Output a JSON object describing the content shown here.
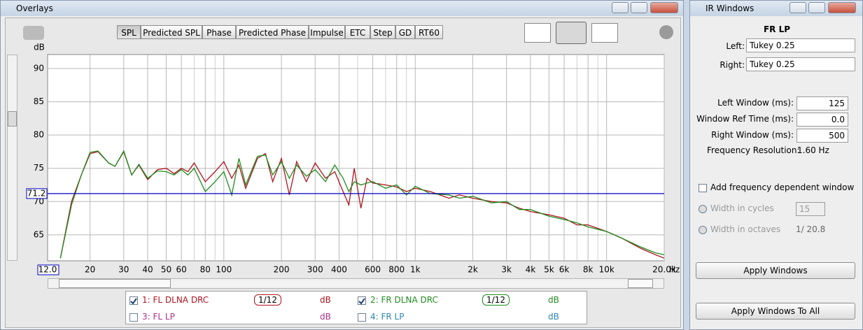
{
  "overlays": {
    "title": "Overlays",
    "tabs": [
      "SPL",
      "Predicted SPL",
      "Phase",
      "Predicted Phase",
      "Impulse",
      "ETC",
      "Step",
      "GD",
      "RT60"
    ],
    "active_tab": 0,
    "extra_traces": [
      {
        "name": "3: FL LP",
        "color": "#b0308a",
        "unit": "dB",
        "checked": false
      },
      {
        "name": "4: FR LP",
        "color": "#2a86b0",
        "unit": "dB",
        "checked": false
      }
    ]
  },
  "chart_data": {
    "type": "line",
    "y_unit": "dB",
    "x_unit": "Hz",
    "log_x": true,
    "grid": true,
    "xlim": [
      12,
      20000
    ],
    "ylim": [
      61.1,
      92.1
    ],
    "yticks": [
      65,
      70,
      75,
      80,
      85,
      90
    ],
    "xticks": [
      20,
      30,
      40,
      50,
      60,
      80,
      100,
      200,
      300,
      400,
      600,
      800,
      {
        "value": 1000,
        "label": "1k"
      },
      {
        "value": 2000,
        "label": "2k"
      },
      {
        "value": 3000,
        "label": "3k"
      },
      {
        "value": 4000,
        "label": "4k"
      },
      {
        "value": 5000,
        "label": "5k"
      },
      {
        "value": 6000,
        "label": "6k"
      },
      {
        "value": 8000,
        "label": "8k"
      },
      {
        "value": 10000,
        "label": "10k"
      },
      {
        "value": 20000,
        "label": "20.0k"
      }
    ],
    "xminor": [
      70,
      90,
      500,
      700,
      900,
      7000,
      9000
    ],
    "x_start_label": {
      "value": 12,
      "label": "12.0"
    },
    "cursor_y": 71.2,
    "cursor_color": "#0000c0",
    "x": [
      14,
      16,
      18,
      20,
      22,
      25,
      27,
      30,
      33,
      36,
      40,
      45,
      50,
      55,
      60,
      65,
      70,
      80,
      90,
      100,
      110,
      120,
      130,
      150,
      165,
      180,
      200,
      220,
      240,
      270,
      300,
      340,
      380,
      420,
      450,
      480,
      520,
      560,
      600,
      700,
      800,
      900,
      1000,
      1200,
      1500,
      1700,
      2000,
      2500,
      3000,
      3500,
      4000,
      5000,
      6000,
      7000,
      8000,
      10000,
      12000,
      15000,
      18000,
      20000
    ],
    "series": [
      {
        "name": "1: FL DLNA DRC",
        "color": "#b0141e",
        "checked": true,
        "smoothing": "1/12",
        "unit": "dB",
        "values": [
          61.5,
          70,
          74,
          77.2,
          77.5,
          75.8,
          75.3,
          77.5,
          74,
          75.5,
          73.3,
          74.8,
          75,
          74.2,
          75,
          74.5,
          75.8,
          73,
          74.5,
          76,
          73.5,
          75.5,
          72,
          76.5,
          77.2,
          73,
          76.5,
          71,
          76,
          73,
          75.8,
          73.5,
          74.5,
          71.5,
          69.5,
          75,
          69,
          73.5,
          72.8,
          72.5,
          72.2,
          71.5,
          72,
          71.5,
          70.5,
          71,
          70.5,
          70,
          69.8,
          69,
          68.5,
          68,
          67.5,
          66.5,
          66.5,
          65.5,
          64.5,
          63,
          62,
          61.5
        ]
      },
      {
        "name": "2: FR DLNA DRC",
        "color": "#1e8c1e",
        "checked": true,
        "smoothing": "1/12",
        "unit": "dB",
        "values": [
          61.5,
          69.5,
          74,
          77.4,
          77.6,
          75.8,
          75.3,
          77.6,
          74,
          75.6,
          73.5,
          74.6,
          74.5,
          74,
          74.8,
          74,
          75,
          71.5,
          73,
          74.5,
          71,
          76.5,
          72.5,
          76.8,
          77,
          74,
          76,
          73.5,
          75.5,
          73.8,
          74.8,
          73,
          75.5,
          73.5,
          71.5,
          73,
          72.5,
          72.8,
          73,
          72,
          72.5,
          71,
          72.3,
          71.2,
          71,
          70.5,
          70.8,
          69.8,
          70,
          68.8,
          68.8,
          67.8,
          67.3,
          66.8,
          66.2,
          65.5,
          64.5,
          63.2,
          62.3,
          62
        ]
      }
    ]
  },
  "ir_windows": {
    "title": "IR Windows",
    "measurement": "FR LP",
    "left_label": "Left:",
    "left_value": "Tukey 0.25",
    "right_label": "Right:",
    "right_value": "Tukey 0.25",
    "fields": [
      {
        "label": "Left Window (ms):",
        "value": "125"
      },
      {
        "label": "Window Ref Time (ms):",
        "value": "0.0"
      },
      {
        "label": "Right Window (ms):",
        "value": "500"
      }
    ],
    "freq_res_label": "Frequency Resolution:",
    "freq_res": "1.60 Hz",
    "fdw_label": "Add frequency dependent window",
    "cycles_label": "Width in cycles",
    "cycles_value": "15",
    "octaves_label": "Width in octaves",
    "octaves_value": "1/ 20.8",
    "buttons": [
      "Apply Windows",
      "Apply Windows To All"
    ]
  }
}
